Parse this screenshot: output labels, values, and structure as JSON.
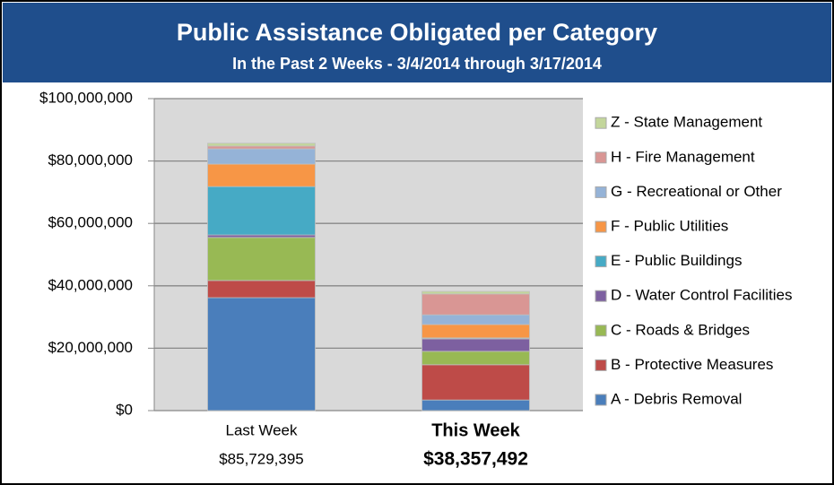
{
  "chart_data": {
    "type": "stacked_bar",
    "title": "Public Assistance Obligated per Category",
    "subtitle": "In the Past 2 Weeks - 3/4/2014 through 3/17/2014",
    "categories": [
      "Last Week",
      "This Week"
    ],
    "totals": [
      "$85,729,395",
      "$38,357,492"
    ],
    "ylim": [
      0,
      100000000
    ],
    "yticks": [
      {
        "value": 0,
        "label": "$0"
      },
      {
        "value": 20000000,
        "label": "$20,000,000"
      },
      {
        "value": 40000000,
        "label": "$40,000,000"
      },
      {
        "value": 60000000,
        "label": "$60,000,000"
      },
      {
        "value": 80000000,
        "label": "$80,000,000"
      },
      {
        "value": 100000000,
        "label": "$100,000,000"
      }
    ],
    "grid": true,
    "legend": "right",
    "series": [
      {
        "name": "A - Debris Removal",
        "color": "#4a7ebb",
        "values": [
          36200000,
          3400000
        ]
      },
      {
        "name": "B - Protective Measures",
        "color": "#be4b48",
        "values": [
          5500000,
          11300000
        ]
      },
      {
        "name": "C - Roads & Bridges",
        "color": "#98b954",
        "values": [
          13800000,
          4300000
        ]
      },
      {
        "name": "D - Water Control Facilities",
        "color": "#7d60a0",
        "values": [
          800000,
          4000000
        ]
      },
      {
        "name": "E - Public Buildings",
        "color": "#46aac5",
        "values": [
          15500000,
          300000
        ]
      },
      {
        "name": "F - Public Utilities",
        "color": "#f79646",
        "values": [
          7200000,
          4300000
        ]
      },
      {
        "name": "G - Recreational or Other",
        "color": "#95b3d7",
        "values": [
          4900000,
          3100000
        ]
      },
      {
        "name": "H - Fire Management",
        "color": "#d99694",
        "values": [
          900000,
          6700000
        ]
      },
      {
        "name": "Z - State Management",
        "color": "#c3d69b",
        "values": [
          900000,
          800000
        ]
      }
    ]
  }
}
